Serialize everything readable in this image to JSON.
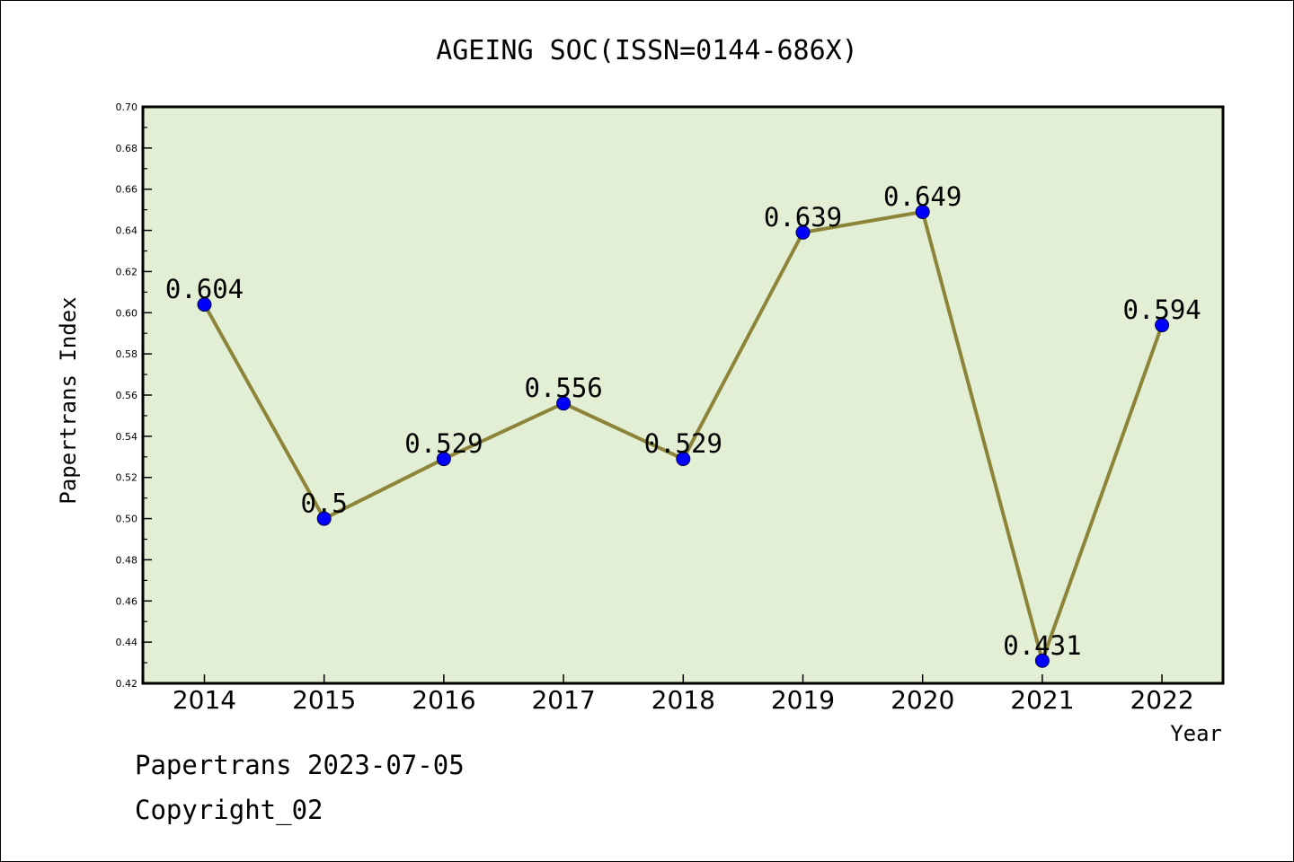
{
  "footer": {
    "line1": "Papertrans 2023-07-05",
    "line2": "Copyright_02"
  },
  "colors": {
    "plot_background": "#e2efd4",
    "line": "#8c8438",
    "marker": "#0000ff"
  },
  "chart_data": {
    "type": "line",
    "title": "AGEING SOC(ISSN=0144-686X)",
    "xlabel": "Year",
    "ylabel": "Papertrans Index",
    "categories": [
      "2014",
      "2015",
      "2016",
      "2017",
      "2018",
      "2019",
      "2020",
      "2021",
      "2022"
    ],
    "values": [
      0.604,
      0.5,
      0.529,
      0.556,
      0.529,
      0.639,
      0.649,
      0.431,
      0.594
    ],
    "data_labels": [
      "0.604",
      "0.5",
      "0.529",
      "0.556",
      "0.529",
      "0.639",
      "0.649",
      "0.431",
      "0.594"
    ],
    "ylim": [
      0.42,
      0.7
    ],
    "yticks": [
      "0.42",
      "0.44",
      "0.46",
      "0.48",
      "0.50",
      "0.52",
      "0.54",
      "0.56",
      "0.58",
      "0.60",
      "0.62",
      "0.64",
      "0.66",
      "0.68",
      "0.70"
    ],
    "grid": false,
    "legend": "none"
  }
}
